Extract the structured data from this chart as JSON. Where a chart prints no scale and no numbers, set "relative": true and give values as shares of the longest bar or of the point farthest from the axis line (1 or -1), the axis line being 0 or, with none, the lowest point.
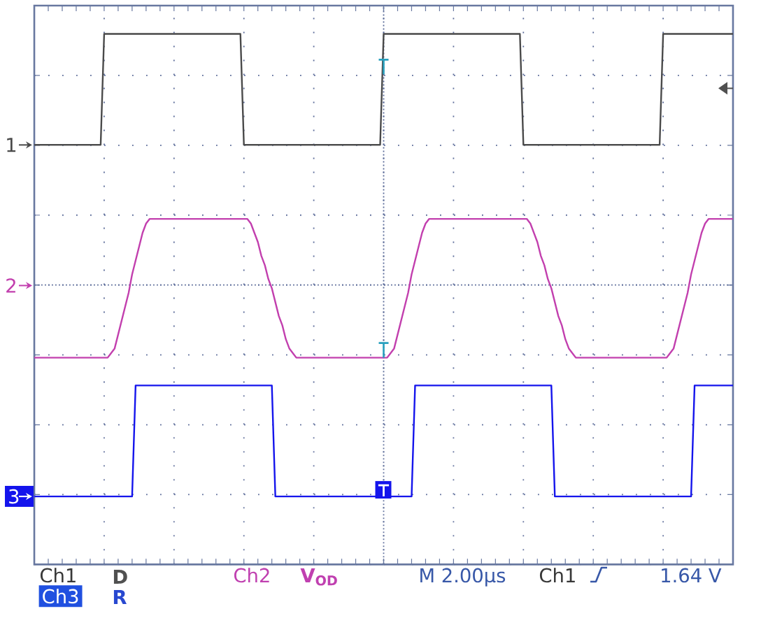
{
  "chart_data": {
    "type": "line",
    "relative": true,
    "grid": true,
    "legend": "left",
    "categories": [
      null,
      null,
      null,
      null,
      null,
      null,
      null,
      null,
      null,
      null,
      null,
      null,
      null,
      null,
      null,
      null,
      null,
      null,
      null,
      null,
      null,
      null,
      null,
      null,
      null,
      null,
      null,
      null,
      null,
      null,
      null,
      null,
      null,
      null,
      null,
      null,
      null,
      null,
      null,
      null,
      null,
      null,
      null,
      null,
      null,
      null,
      null,
      null,
      null,
      null,
      null,
      null,
      null,
      null,
      null,
      null,
      null,
      null,
      null,
      null,
      null,
      null,
      null,
      null,
      null,
      null,
      null,
      null,
      null,
      null,
      null,
      null,
      null,
      null,
      null,
      null,
      null,
      null,
      null,
      null,
      null,
      null,
      null,
      null,
      null,
      null,
      null,
      null,
      null,
      null,
      null,
      null,
      null,
      null,
      null,
      null,
      null,
      null,
      null,
      null,
      null,
      null,
      null,
      null,
      null,
      null,
      null,
      null,
      null,
      null,
      null,
      null,
      null,
      null,
      null,
      null,
      null,
      null,
      null,
      null,
      null,
      null,
      null,
      null,
      null,
      null,
      null,
      null,
      null,
      null,
      null,
      null,
      null,
      null,
      null,
      null,
      null,
      null,
      null,
      null,
      null,
      null,
      null,
      null,
      null,
      null,
      null,
      null,
      null,
      null,
      null,
      null,
      null,
      null,
      null,
      null,
      null,
      null,
      null,
      null,
      null,
      null,
      null,
      null,
      null,
      null,
      null,
      null,
      null,
      null,
      null,
      null,
      null,
      null,
      null,
      null,
      null,
      null,
      null,
      null,
      null,
      null,
      null,
      null,
      null,
      null,
      null,
      null,
      null,
      null,
      null,
      null,
      null,
      null,
      null,
      null,
      null,
      null,
      null,
      null,
      null
    ],
    "series": [
      {
        "name": "1",
        "color": "#4a4a4a",
        "values": [
          0.76,
          0.76,
          0.76,
          0.76,
          0.76,
          0.76,
          0.76,
          0.76,
          0.76,
          0.76,
          0.76,
          0.76,
          0.76,
          0.76,
          0.76,
          0.76,
          0.76,
          0.76,
          0.76,
          0.76,
          1,
          1,
          1,
          1,
          1,
          1,
          1,
          1,
          1,
          1,
          1,
          1,
          1,
          1,
          1,
          1,
          1,
          1,
          1,
          1,
          1,
          1,
          1,
          1,
          1,
          1,
          1,
          1,
          1,
          1,
          1,
          1,
          1,
          1,
          1,
          1,
          1,
          1,
          1,
          1,
          0.76,
          0.76,
          0.76,
          0.76,
          0.76,
          0.76,
          0.76,
          0.76,
          0.76,
          0.76,
          0.76,
          0.76,
          0.76,
          0.76,
          0.76,
          0.76,
          0.76,
          0.76,
          0.76,
          0.76,
          0.76,
          0.76,
          0.76,
          0.76,
          0.76,
          0.76,
          0.76,
          0.76,
          0.76,
          0.76,
          0.76,
          0.76,
          0.76,
          0.76,
          0.76,
          0.76,
          0.76,
          0.76,
          0.76,
          0.76,
          1,
          1,
          1,
          1,
          1,
          1,
          1,
          1,
          1,
          1,
          1,
          1,
          1,
          1,
          1,
          1,
          1,
          1,
          1,
          1,
          1,
          1,
          1,
          1,
          1,
          1,
          1,
          1,
          1,
          1,
          1,
          1,
          1,
          1,
          1,
          1,
          1,
          1,
          1,
          1,
          0.76,
          0.76,
          0.76,
          0.76,
          0.76,
          0.76,
          0.76,
          0.76,
          0.76,
          0.76,
          0.76,
          0.76,
          0.76,
          0.76,
          0.76,
          0.76,
          0.76,
          0.76,
          0.76,
          0.76,
          0.76,
          0.76,
          0.76,
          0.76,
          0.76,
          0.76,
          0.76,
          0.76,
          0.76,
          0.76,
          0.76,
          0.76,
          0.76,
          0.76,
          0.76,
          0.76,
          0.76,
          0.76,
          0.76,
          0.76,
          1,
          1,
          1,
          1,
          1,
          1,
          1,
          1,
          1,
          1,
          1,
          1,
          1,
          1,
          1,
          1,
          1,
          1,
          1,
          1,
          1
        ]
      },
      {
        "name": "2",
        "color": "#c23fae",
        "values": [
          0.3,
          0.3,
          0.3,
          0.3,
          0.3,
          0.3,
          0.3,
          0.3,
          0.3,
          0.3,
          0.3,
          0.3,
          0.3,
          0.3,
          0.3,
          0.3,
          0.3,
          0.3,
          0.3,
          0.3,
          0.3,
          0.3,
          0.31,
          0.32,
          0.35,
          0.38,
          0.41,
          0.44,
          0.48,
          0.51,
          0.54,
          0.57,
          0.59,
          0.6,
          0.6,
          0.6,
          0.6,
          0.6,
          0.6,
          0.6,
          0.6,
          0.6,
          0.6,
          0.6,
          0.6,
          0.6,
          0.6,
          0.6,
          0.6,
          0.6,
          0.6,
          0.6,
          0.6,
          0.6,
          0.6,
          0.6,
          0.6,
          0.6,
          0.6,
          0.6,
          0.6,
          0.6,
          0.59,
          0.57,
          0.55,
          0.52,
          0.5,
          0.47,
          0.45,
          0.42,
          0.39,
          0.37,
          0.34,
          0.32,
          0.31,
          0.3,
          0.3,
          0.3,
          0.3,
          0.3,
          0.3,
          0.3,
          0.3,
          0.3,
          0.3,
          0.3,
          0.3,
          0.3,
          0.3,
          0.3,
          0.3,
          0.3,
          0.3,
          0.3,
          0.3,
          0.3,
          0.3,
          0.3,
          0.3,
          0.3,
          0.3,
          0.3,
          0.31,
          0.32,
          0.35,
          0.38,
          0.41,
          0.44,
          0.48,
          0.51,
          0.54,
          0.57,
          0.59,
          0.6,
          0.6,
          0.6,
          0.6,
          0.6,
          0.6,
          0.6,
          0.6,
          0.6,
          0.6,
          0.6,
          0.6,
          0.6,
          0.6,
          0.6,
          0.6,
          0.6,
          0.6,
          0.6,
          0.6,
          0.6,
          0.6,
          0.6,
          0.6,
          0.6,
          0.6,
          0.6,
          0.6,
          0.6,
          0.59,
          0.57,
          0.55,
          0.52,
          0.5,
          0.47,
          0.45,
          0.42,
          0.39,
          0.37,
          0.34,
          0.32,
          0.31,
          0.3,
          0.3,
          0.3,
          0.3,
          0.3,
          0.3,
          0.3,
          0.3,
          0.3,
          0.3,
          0.3,
          0.3,
          0.3,
          0.3,
          0.3,
          0.3,
          0.3,
          0.3,
          0.3,
          0.3,
          0.3,
          0.3,
          0.3,
          0.3,
          0.3,
          0.3,
          0.3,
          0.31,
          0.32,
          0.35,
          0.38,
          0.41,
          0.44,
          0.48,
          0.51,
          0.54,
          0.57,
          0.59,
          0.6,
          0.6,
          0.6,
          0.6,
          0.6,
          0.6,
          0.6,
          0.6
        ]
      },
      {
        "name": "3",
        "color": "#1414ec",
        "values": [
          0,
          0,
          0,
          0,
          0,
          0,
          0,
          0,
          0,
          0,
          0,
          0,
          0,
          0,
          0,
          0,
          0,
          0,
          0,
          0,
          0,
          0,
          0,
          0,
          0,
          0,
          0,
          0,
          0,
          0.24,
          0.24,
          0.24,
          0.24,
          0.24,
          0.24,
          0.24,
          0.24,
          0.24,
          0.24,
          0.24,
          0.24,
          0.24,
          0.24,
          0.24,
          0.24,
          0.24,
          0.24,
          0.24,
          0.24,
          0.24,
          0.24,
          0.24,
          0.24,
          0.24,
          0.24,
          0.24,
          0.24,
          0.24,
          0.24,
          0.24,
          0.24,
          0.24,
          0.24,
          0.24,
          0.24,
          0.24,
          0.24,
          0.24,
          0.24,
          0,
          0,
          0,
          0,
          0,
          0,
          0,
          0,
          0,
          0,
          0,
          0,
          0,
          0,
          0,
          0,
          0,
          0,
          0,
          0,
          0,
          0,
          0,
          0,
          0,
          0,
          0,
          0,
          0,
          0,
          0,
          0,
          0,
          0,
          0,
          0,
          0,
          0,
          0,
          0,
          0.24,
          0.24,
          0.24,
          0.24,
          0.24,
          0.24,
          0.24,
          0.24,
          0.24,
          0.24,
          0.24,
          0.24,
          0.24,
          0.24,
          0.24,
          0.24,
          0.24,
          0.24,
          0.24,
          0.24,
          0.24,
          0.24,
          0.24,
          0.24,
          0.24,
          0.24,
          0.24,
          0.24,
          0.24,
          0.24,
          0.24,
          0.24,
          0.24,
          0.24,
          0.24,
          0.24,
          0.24,
          0.24,
          0.24,
          0.24,
          0,
          0,
          0,
          0,
          0,
          0,
          0,
          0,
          0,
          0,
          0,
          0,
          0,
          0,
          0,
          0,
          0,
          0,
          0,
          0,
          0,
          0,
          0,
          0,
          0,
          0,
          0,
          0,
          0,
          0,
          0,
          0,
          0,
          0,
          0,
          0,
          0,
          0,
          0,
          0,
          0.24,
          0.24,
          0.24,
          0.24,
          0.24,
          0.24,
          0.24,
          0.24,
          0.24,
          0.24,
          0.24,
          0.24
        ]
      }
    ],
    "annotations": [
      "Ch1",
      "D",
      "Ch2",
      "V$_{OD}$",
      "M 2.00µs",
      "Ch1",
      "1.64 V",
      "Ch3",
      "R"
    ]
  }
}
